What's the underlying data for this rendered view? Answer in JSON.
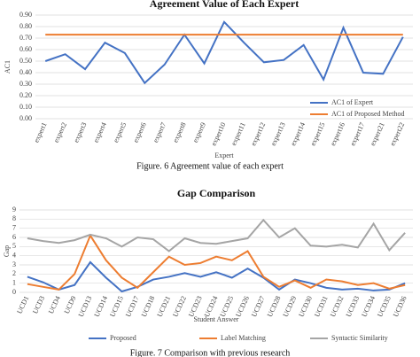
{
  "chart_data": [
    {
      "type": "line",
      "title": "Agreement Value of Each Expert",
      "x_label": "Expert",
      "y_label": "AC1",
      "caption": "Figure. 6 Agreement value of each expert",
      "categories": [
        "expert1",
        "expert2",
        "expert3",
        "expert4",
        "expert5",
        "expert6",
        "expert7",
        "expert8",
        "expert9",
        "expert10",
        "expert11",
        "expert12",
        "expert13",
        "expert14",
        "expert15",
        "expert16",
        "expert17",
        "expert21",
        "expert22"
      ],
      "series": [
        {
          "name": "AC1 of Expert",
          "color": "#4472c4",
          "values": [
            0.5,
            0.56,
            0.43,
            0.66,
            0.57,
            0.31,
            0.47,
            0.73,
            0.48,
            0.84,
            0.66,
            0.49,
            0.51,
            0.64,
            0.34,
            0.79,
            0.4,
            0.39,
            0.71
          ]
        },
        {
          "name": "AC1 of Proposed Method",
          "color": "#ed7d31",
          "values": [
            0.73,
            0.73,
            0.73,
            0.73,
            0.73,
            0.73,
            0.73,
            0.73,
            0.73,
            0.73,
            0.73,
            0.73,
            0.73,
            0.73,
            0.73,
            0.73,
            0.73,
            0.73,
            0.73
          ]
        }
      ],
      "ylim": [
        0,
        0.9
      ],
      "yticks": [
        {
          "value": 0,
          "label": "0.00"
        },
        {
          "value": 0.1,
          "label": "0.10"
        },
        {
          "value": 0.2,
          "label": "0.20"
        },
        {
          "value": 0.3,
          "label": "0.30"
        },
        {
          "value": 0.4,
          "label": "0.40"
        },
        {
          "value": 0.5,
          "label": "0.50"
        },
        {
          "value": 0.6,
          "label": "0.60"
        },
        {
          "value": 0.7,
          "label": "0.70"
        },
        {
          "value": 0.8,
          "label": "0.80"
        },
        {
          "value": 0.9,
          "label": "0.90"
        }
      ],
      "grid": true,
      "legend": "lower right"
    },
    {
      "type": "line",
      "title": "Gap Comparison",
      "x_label": "Student Answer",
      "y_label": "Gap",
      "caption": "Figure. 7 Comparison with previous research",
      "categories": [
        "UCD1",
        "UCD3",
        "UCD4",
        "UCD9",
        "UCD13",
        "UCD14",
        "UCD15",
        "UCD17",
        "UCD18",
        "UCD21",
        "UCD22",
        "UCD23",
        "UCD24",
        "UCD25",
        "UCD26",
        "UCD27",
        "UCD28",
        "UCD29",
        "UCD30",
        "UCD31",
        "UCD32",
        "UCD33",
        "UCD34",
        "UCD35",
        "UCD36"
      ],
      "series": [
        {
          "name": "Proposed",
          "color": "#4472c4",
          "values": [
            1.7,
            1.1,
            0.3,
            0.8,
            3.3,
            1.6,
            0.1,
            0.6,
            1.4,
            1.7,
            2.1,
            1.7,
            2.2,
            1.6,
            2.6,
            1.6,
            0.3,
            1.4,
            1.0,
            0.5,
            0.3,
            0.4,
            0.2,
            0.3,
            1.0
          ]
        },
        {
          "name": "Label Matching",
          "color": "#ed7d31",
          "values": [
            0.9,
            0.6,
            0.3,
            2.0,
            6.2,
            3.5,
            1.6,
            0.5,
            2.2,
            3.9,
            3.0,
            3.2,
            3.9,
            3.5,
            4.5,
            1.7,
            0.6,
            1.3,
            0.5,
            1.4,
            1.2,
            0.8,
            1.0,
            0.4,
            0.8
          ]
        },
        {
          "name": "Syntactic Similarity",
          "color": "#a5a5a5",
          "values": [
            5.9,
            5.6,
            5.4,
            5.7,
            6.3,
            5.9,
            5.0,
            6.0,
            5.8,
            4.5,
            5.9,
            5.4,
            5.3,
            5.6,
            5.9,
            7.9,
            6.0,
            7.0,
            5.1,
            5.0,
            5.2,
            4.9,
            7.5,
            4.6,
            6.5
          ]
        }
      ],
      "ylim": [
        0,
        9
      ],
      "yticks": [
        0,
        1,
        2,
        3,
        4,
        5,
        6,
        7,
        8,
        9
      ],
      "grid": true,
      "legend": "bottom"
    }
  ]
}
